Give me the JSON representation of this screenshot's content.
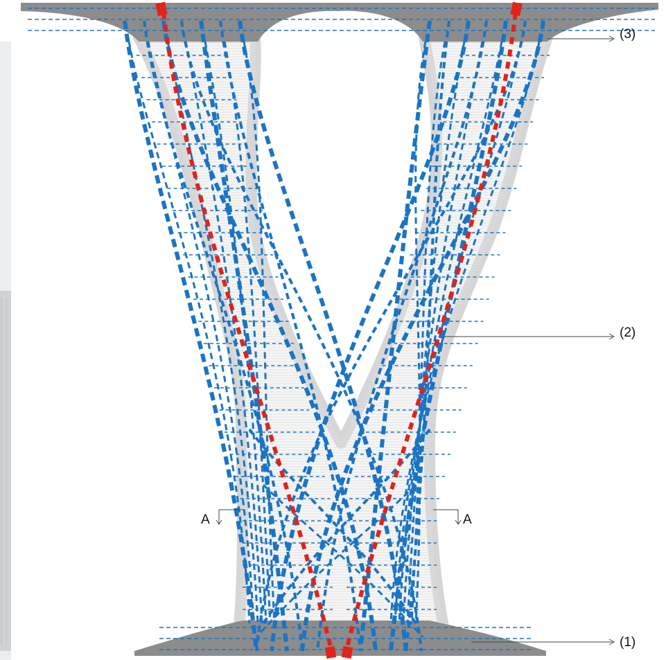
{
  "labels": {
    "part_3": "(3)",
    "part_2": "(2)",
    "part_1": "(1)",
    "section_left": "A",
    "section_right": "A"
  },
  "colors": {
    "background": "#ffffff",
    "concrete_slab": "#8c8c8c",
    "wall_outline": "#d6d6d6",
    "wall_fill": "#f6f6f6",
    "hatch_line": "#e3e3e3",
    "tendon_blue": "#1a74c4",
    "tendon_red": "#e2231a",
    "leader_line": "#444444",
    "left_edge_strip": "#cfd3d6"
  }
}
